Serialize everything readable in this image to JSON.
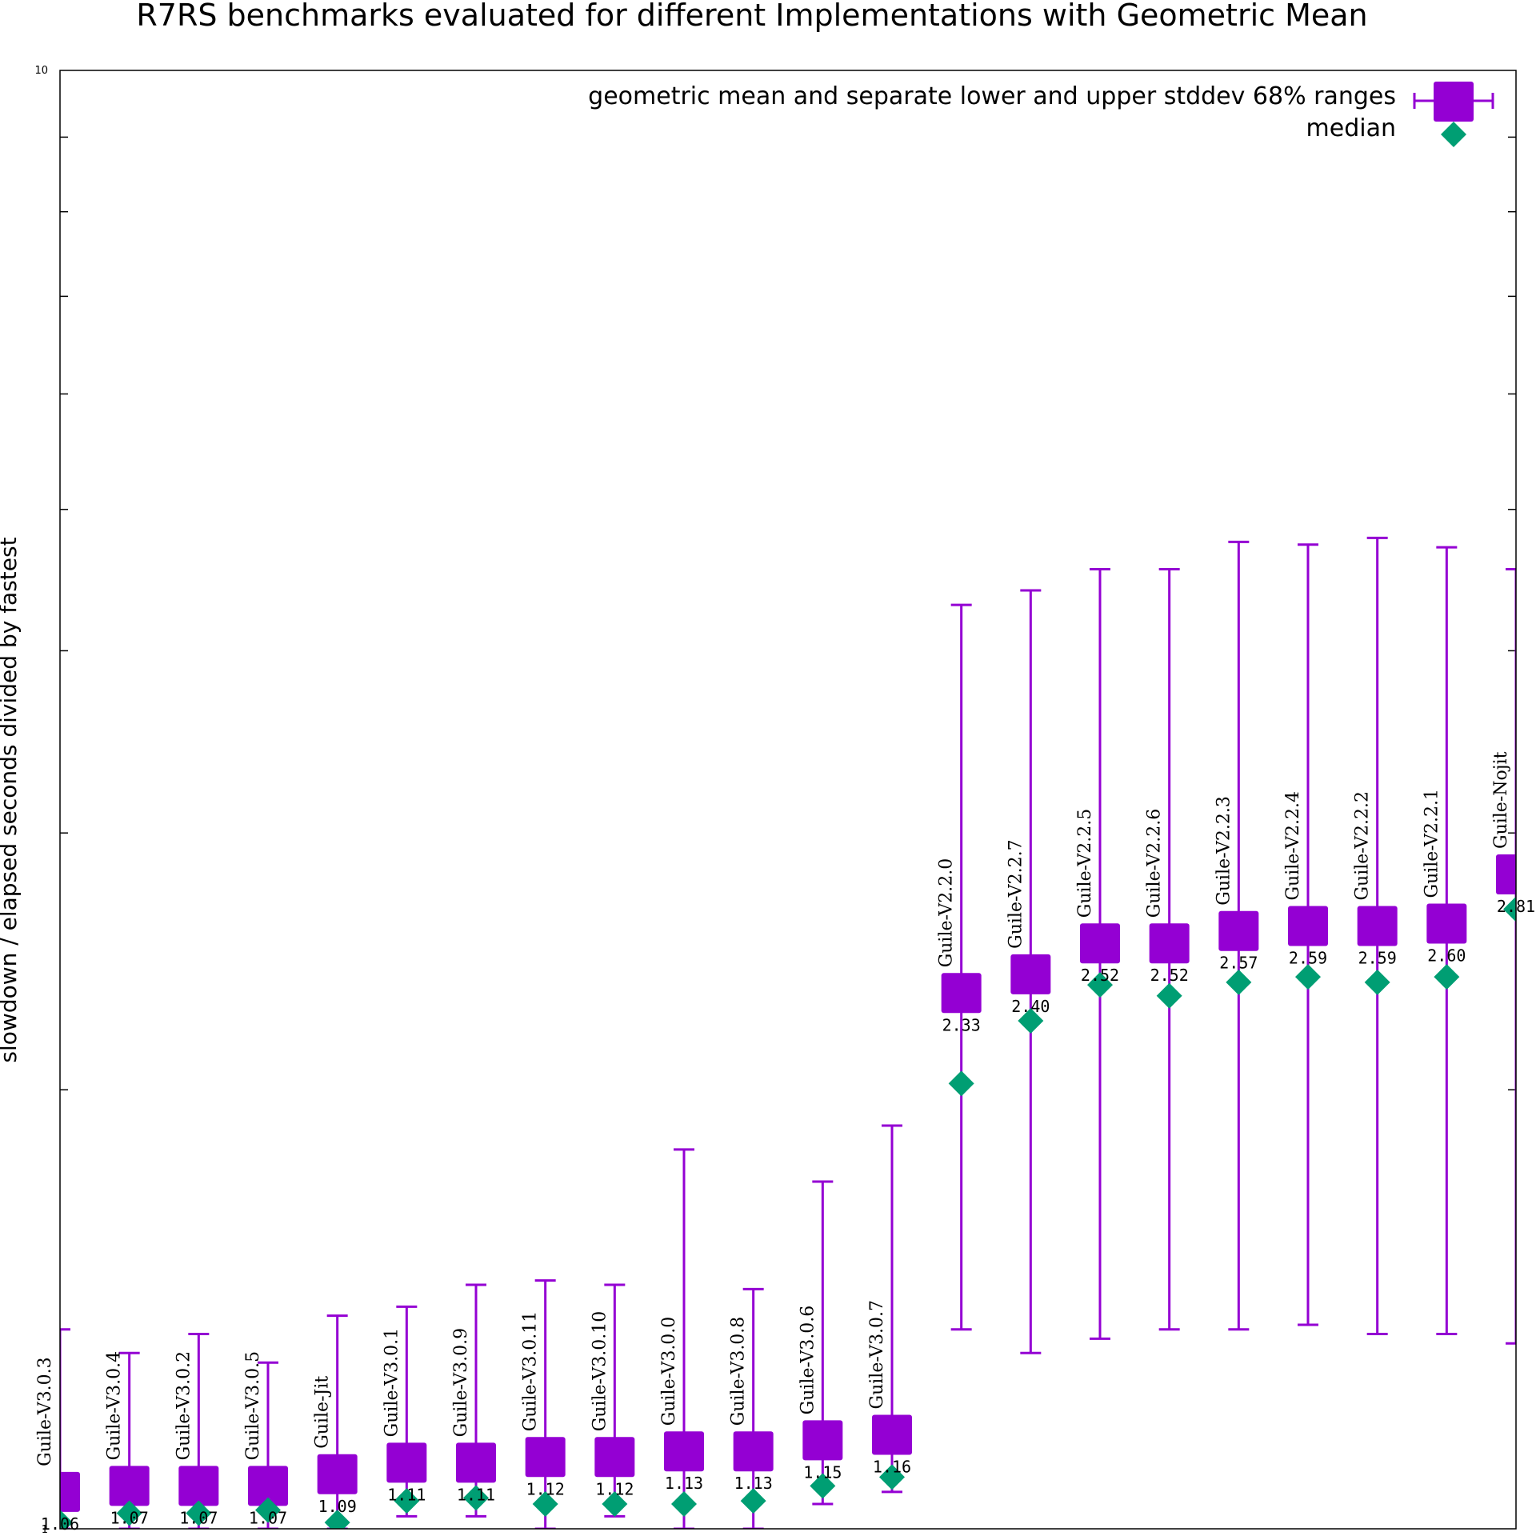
{
  "chart_data": {
    "type": "scatter",
    "title": "R7RS benchmarks evaluated for different Implementations with Geometric Mean",
    "xlabel": "",
    "ylabel": "slowdown / elapsed seconds divided by fastest",
    "yscale": "log",
    "ylim": [
      1,
      10
    ],
    "ytick_labels": [
      "1",
      "10"
    ],
    "legend": {
      "position": "top-right",
      "entries": [
        "geometric mean and separate lower and upper stddev 68% ranges",
        "median"
      ]
    },
    "colors": {
      "mean": "#9400d3",
      "median": "#009e73",
      "axis": "#000000"
    },
    "categories": [
      "Guile-V3.0.3",
      "Guile-V3.0.4",
      "Guile-V3.0.2",
      "Guile-V3.0.5",
      "Guile-Jit",
      "Guile-V3.0.1",
      "Guile-V3.0.9",
      "Guile-V3.0.11",
      "Guile-V3.0.10",
      "Guile-V3.0.0",
      "Guile-V3.0.8",
      "Guile-V3.0.6",
      "Guile-V3.0.7",
      "Guile-V2.2.0",
      "Guile-V2.2.7",
      "Guile-V2.2.5",
      "Guile-V2.2.6",
      "Guile-V2.2.3",
      "Guile-V2.2.4",
      "Guile-V2.2.2",
      "Guile-V2.2.1",
      "Guile-Nojit"
    ],
    "series": [
      {
        "name": "geometric mean",
        "value_labels": [
          "1.06",
          "1.07",
          "1.07",
          "1.07",
          "1.09",
          "1.11",
          "1.11",
          "1.12",
          "1.12",
          "1.13",
          "1.13",
          "1.15",
          "1.16",
          "2.33",
          "2.40",
          "2.52",
          "2.52",
          "2.57",
          "2.59",
          "2.59",
          "2.60",
          "2.81"
        ],
        "values": [
          1.06,
          1.07,
          1.07,
          1.07,
          1.09,
          1.11,
          1.11,
          1.12,
          1.12,
          1.13,
          1.13,
          1.15,
          1.16,
          2.33,
          2.4,
          2.52,
          2.52,
          2.57,
          2.59,
          2.59,
          2.6,
          2.81
        ],
        "lower": [
          1.0,
          1.0,
          1.0,
          1.0,
          1.0,
          1.02,
          1.02,
          1.0,
          1.02,
          1.0,
          1.0,
          1.04,
          1.06,
          1.37,
          1.32,
          1.35,
          1.37,
          1.37,
          1.38,
          1.36,
          1.36,
          1.34
        ],
        "upper": [
          1.37,
          1.32,
          1.36,
          1.3,
          1.4,
          1.42,
          1.47,
          1.48,
          1.47,
          1.82,
          1.46,
          1.73,
          1.89,
          4.3,
          4.4,
          4.55,
          4.55,
          4.75,
          4.73,
          4.78,
          4.71,
          4.55
        ]
      },
      {
        "name": "median",
        "values": [
          1.01,
          1.025,
          1.025,
          1.03,
          1.01,
          1.045,
          1.05,
          1.04,
          1.04,
          1.04,
          1.045,
          1.07,
          1.085,
          2.02,
          2.23,
          2.36,
          2.32,
          2.37,
          2.39,
          2.37,
          2.39,
          2.66
        ]
      }
    ]
  }
}
